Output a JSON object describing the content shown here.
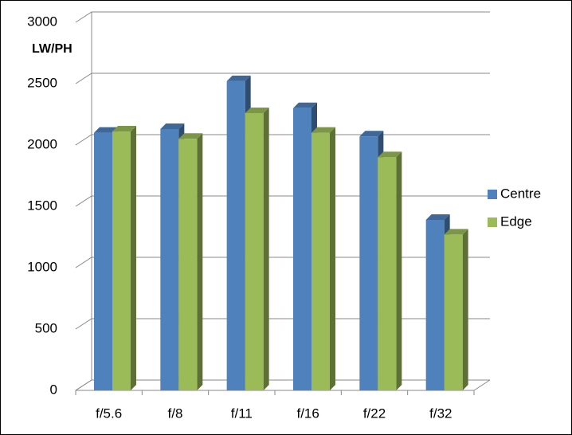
{
  "chart_data": {
    "type": "bar3d",
    "y_label": "LW/PH",
    "categories": [
      "f/5.6",
      "f/8",
      "f/11",
      "f/16",
      "f/22",
      "f/32"
    ],
    "series": [
      {
        "name": "Centre",
        "color": "#4f81bd",
        "values": [
          2100,
          2130,
          2520,
          2300,
          2070,
          1390
        ]
      },
      {
        "name": "Edge",
        "color": "#9bbb59",
        "values": [
          2110,
          2050,
          2260,
          2100,
          1900,
          1270
        ]
      }
    ],
    "ylim": [
      0,
      3000
    ],
    "yticks": [
      0,
      500,
      1000,
      1500,
      2000,
      2500,
      3000
    ],
    "grid": true,
    "legend": "right"
  }
}
